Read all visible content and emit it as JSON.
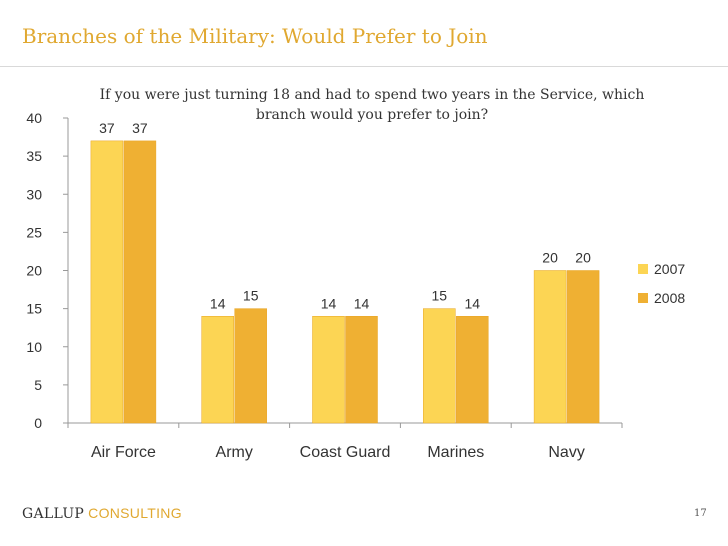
{
  "slide": {
    "title": "Branches of the Military: Would Prefer to Join",
    "page_number": "17"
  },
  "footer": {
    "brand": "GALLUP",
    "brand_sub": "CONSULTING"
  },
  "colors": {
    "title": "#e0a830",
    "series_2007": "#fcd554",
    "series_2008": "#efb033",
    "axis": "#999999"
  },
  "chart_data": {
    "type": "bar",
    "title": "If you were just turning 18 and had to spend two years in the Service, which branch would you prefer to join?",
    "title_lines": [
      "If you were just turning 18 and had to spend two years in the Service, which",
      "branch would you prefer to join?"
    ],
    "categories": [
      "Air Force",
      "Army",
      "Coast Guard",
      "Marines",
      "Navy"
    ],
    "series": [
      {
        "name": "2007",
        "values": [
          37,
          14,
          14,
          15,
          20
        ]
      },
      {
        "name": "2008",
        "values": [
          37,
          15,
          14,
          14,
          20
        ]
      }
    ],
    "ylim": [
      0,
      40
    ],
    "yticks": [
      0,
      5,
      10,
      15,
      20,
      25,
      30,
      35,
      40
    ],
    "grid": false,
    "legend": "right",
    "data_labels": true
  }
}
